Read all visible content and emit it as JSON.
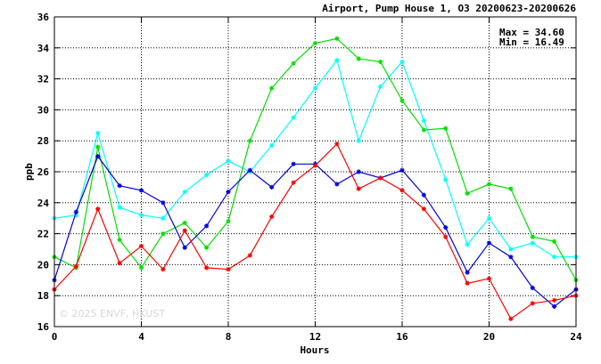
{
  "chart_data": {
    "type": "line",
    "title": "Airport, Pump House 1, O3 20200623-20200626",
    "xlabel": "Hours",
    "ylabel": "ppb",
    "xlim": [
      0,
      24
    ],
    "ylim": [
      16,
      36
    ],
    "x_ticks": [
      0,
      4,
      8,
      12,
      16,
      20,
      24
    ],
    "y_ticks": [
      16,
      18,
      20,
      22,
      24,
      26,
      28,
      30,
      32,
      34,
      36
    ],
    "grid": true,
    "annotations": {
      "max": "Max = 34.60",
      "min": "Min = 16.49"
    },
    "watermark": "© 2025 ENVF, HKUST",
    "x": [
      0,
      1,
      2,
      3,
      4,
      5,
      6,
      7,
      8,
      9,
      10,
      11,
      12,
      13,
      14,
      15,
      16,
      17,
      18,
      19,
      20,
      21,
      22,
      23,
      24
    ],
    "series": [
      {
        "color": "#00ffff",
        "values": [
          23.0,
          23.2,
          28.5,
          23.7,
          23.2,
          23.0,
          24.7,
          25.8,
          26.7,
          26.0,
          27.7,
          29.5,
          31.4,
          33.2,
          28.0,
          31.5,
          33.1,
          29.3,
          25.5,
          21.3,
          23.0,
          21.0,
          21.4,
          20.5,
          20.5
        ]
      },
      {
        "color": "#00e000",
        "values": [
          20.5,
          19.8,
          27.6,
          21.6,
          19.8,
          22.0,
          22.7,
          21.1,
          22.8,
          28.0,
          31.4,
          33.0,
          34.3,
          34.6,
          33.3,
          33.1,
          30.6,
          28.7,
          28.8,
          24.6,
          25.2,
          24.9,
          21.8,
          21.5,
          19.0
        ]
      },
      {
        "color": "#0000e0",
        "values": [
          19.0,
          23.4,
          27.0,
          25.1,
          24.8,
          24.0,
          21.1,
          22.5,
          24.7,
          26.1,
          25.0,
          26.5,
          26.5,
          25.2,
          26.0,
          25.6,
          26.1,
          24.5,
          22.4,
          19.5,
          21.4,
          20.5,
          18.5,
          17.3,
          18.4
        ]
      },
      {
        "color": "#ff0000",
        "values": [
          18.4,
          19.9,
          23.6,
          20.1,
          21.2,
          19.7,
          22.2,
          19.8,
          19.7,
          20.6,
          23.1,
          25.3,
          26.4,
          27.8,
          24.9,
          25.6,
          24.8,
          23.6,
          21.8,
          18.8,
          19.1,
          16.5,
          17.5,
          17.7,
          18.0
        ]
      }
    ]
  }
}
